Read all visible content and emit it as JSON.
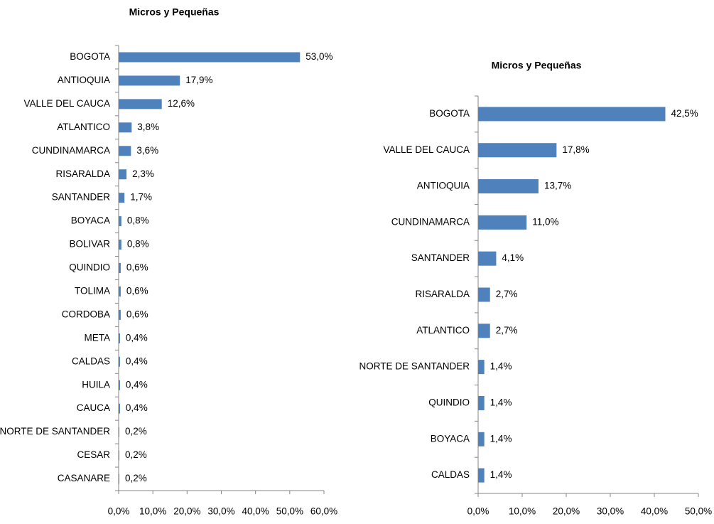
{
  "chart_data": [
    {
      "type": "barh",
      "title": "Micros y Pequeñas",
      "categories": [
        "BOGOTA",
        "ANTIOQUIA",
        "VALLE DEL CAUCA",
        "ATLANTICO",
        "CUNDINAMARCA",
        "RISARALDA",
        "SANTANDER",
        "BOYACA",
        "BOLIVAR",
        "QUINDIO",
        "TOLIMA",
        "CORDOBA",
        "META",
        "CALDAS",
        "HUILA",
        "CAUCA",
        "NORTE DE SANTANDER",
        "CESAR",
        "CASANARE"
      ],
      "values": [
        53.0,
        17.9,
        12.6,
        3.8,
        3.6,
        2.3,
        1.7,
        0.8,
        0.8,
        0.6,
        0.6,
        0.6,
        0.4,
        0.4,
        0.4,
        0.4,
        0.2,
        0.2,
        0.2
      ],
      "value_labels": [
        "53,0%",
        "17,9%",
        "12,6%",
        "3,8%",
        "3,6%",
        "2,3%",
        "1,7%",
        "0,8%",
        "0,8%",
        "0,6%",
        "0,6%",
        "0,6%",
        "0,4%",
        "0,4%",
        "0,4%",
        "0,4%",
        "0,2%",
        "0,2%",
        "0,2%"
      ],
      "color": "#4f81bd",
      "xlim": [
        0,
        60
      ],
      "xticks": [
        {
          "value": 0,
          "label": "0,0%"
        },
        {
          "value": 10,
          "label": "10,0%"
        },
        {
          "value": 20,
          "label": "20,0%"
        },
        {
          "value": 30,
          "label": "30,0%"
        },
        {
          "value": 40,
          "label": "40,0%"
        },
        {
          "value": 50,
          "label": "50,0%"
        },
        {
          "value": 60,
          "label": "60,0%"
        }
      ]
    },
    {
      "type": "barh",
      "title": "Micros y Pequeñas",
      "categories": [
        "BOGOTA",
        "VALLE DEL CAUCA",
        "ANTIOQUIA",
        "CUNDINAMARCA",
        "SANTANDER",
        "RISARALDA",
        "ATLANTICO",
        "NORTE DE SANTANDER",
        "QUINDIO",
        "BOYACA",
        "CALDAS"
      ],
      "values": [
        42.5,
        17.8,
        13.7,
        11.0,
        4.1,
        2.7,
        2.7,
        1.4,
        1.4,
        1.4,
        1.4
      ],
      "value_labels": [
        "42,5%",
        "17,8%",
        "13,7%",
        "11,0%",
        "4,1%",
        "2,7%",
        "2,7%",
        "1,4%",
        "1,4%",
        "1,4%",
        "1,4%"
      ],
      "color": "#4f81bd",
      "xlim": [
        0,
        50
      ],
      "xticks": [
        {
          "value": 0,
          "label": "0,0%"
        },
        {
          "value": 10,
          "label": "10,0%"
        },
        {
          "value": 20,
          "label": "20,0%"
        },
        {
          "value": 30,
          "label": "30,0%"
        },
        {
          "value": 40,
          "label": "40,0%"
        },
        {
          "value": 50,
          "label": "50,0%"
        }
      ]
    }
  ]
}
